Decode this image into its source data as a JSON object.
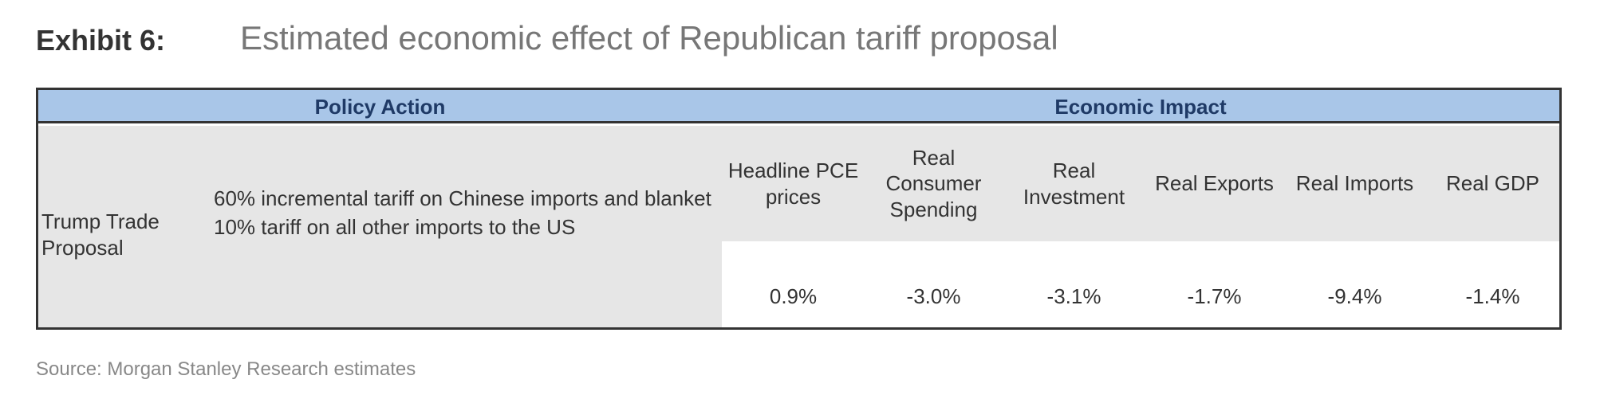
{
  "title": {
    "label": "Exhibit 6:",
    "text": "Estimated economic effect of Republican tariff proposal"
  },
  "table": {
    "header": [
      "Policy Action",
      "Economic Impact"
    ],
    "proposal": "Trump Trade Proposal",
    "description": "60% incremental tariff on Chinese imports and blanket 10% tariff on all other imports to the US",
    "columns": [
      "Headline PCE prices",
      "Real Consumer Spending",
      "Real Investment",
      "Real Exports",
      "Real Imports",
      "Real GDP"
    ],
    "values": [
      "0.9%",
      "-3.0%",
      "-3.1%",
      "-1.7%",
      "-9.4%",
      "-1.4%"
    ]
  },
  "source": "Source: Morgan Stanley Research estimates"
}
